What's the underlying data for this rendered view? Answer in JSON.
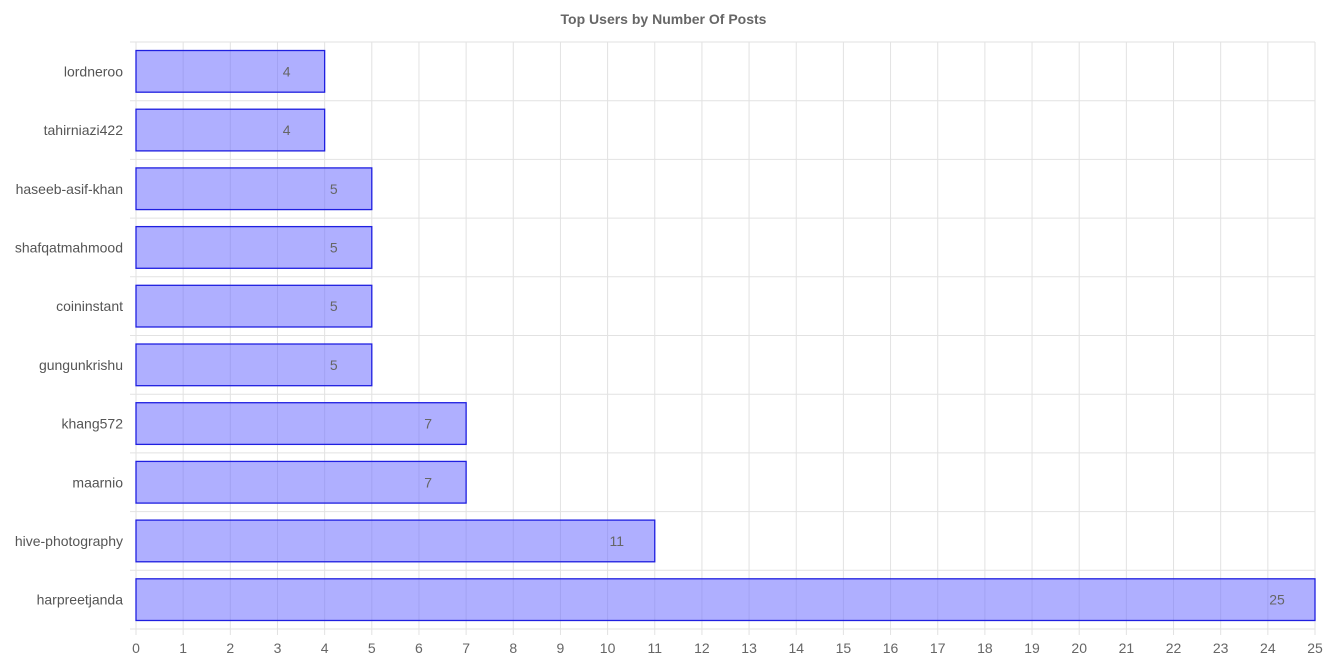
{
  "chart_data": {
    "type": "bar",
    "orientation": "horizontal",
    "title": "Top Users by Number Of Posts",
    "categories": [
      "lordneroo",
      "tahirniazi422",
      "haseeb-asif-khan",
      "shafqatmahmood",
      "coininstant",
      "gungunkrishu",
      "khang572",
      "maarnio",
      "hive-photography",
      "harpreetjanda"
    ],
    "values": [
      4,
      4,
      5,
      5,
      5,
      5,
      7,
      7,
      11,
      25
    ],
    "xlim": [
      0,
      25
    ],
    "xticks": [
      0,
      1,
      2,
      3,
      4,
      5,
      6,
      7,
      8,
      9,
      10,
      11,
      12,
      13,
      14,
      15,
      16,
      17,
      18,
      19,
      20,
      21,
      22,
      23,
      24,
      25
    ],
    "grid": true,
    "data_labels": true,
    "colors": {
      "bar_fill": "#b0b0ff",
      "bar_stroke": "#1f1fe0"
    }
  }
}
